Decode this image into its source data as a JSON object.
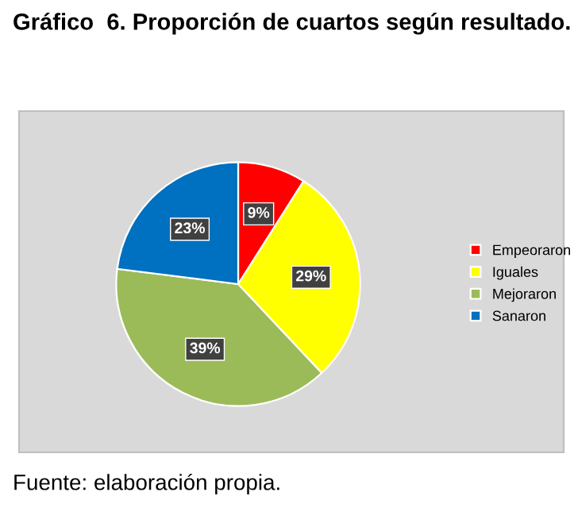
{
  "chart_data": {
    "type": "pie",
    "title": "Gráfico  6. Proporción de cuartos según resultado.",
    "categories": [
      "Empeoraron",
      "Iguales",
      "Mejoraron",
      "Sanaron"
    ],
    "values": [
      9,
      29,
      39,
      23
    ],
    "colors": [
      "#ff0000",
      "#ffff00",
      "#9bbb59",
      "#0070c0"
    ],
    "value_labels": [
      "9%",
      "29%",
      "39%",
      "23%"
    ],
    "legend": "right",
    "annotations": [
      "Fuente: elaboración propia."
    ]
  }
}
